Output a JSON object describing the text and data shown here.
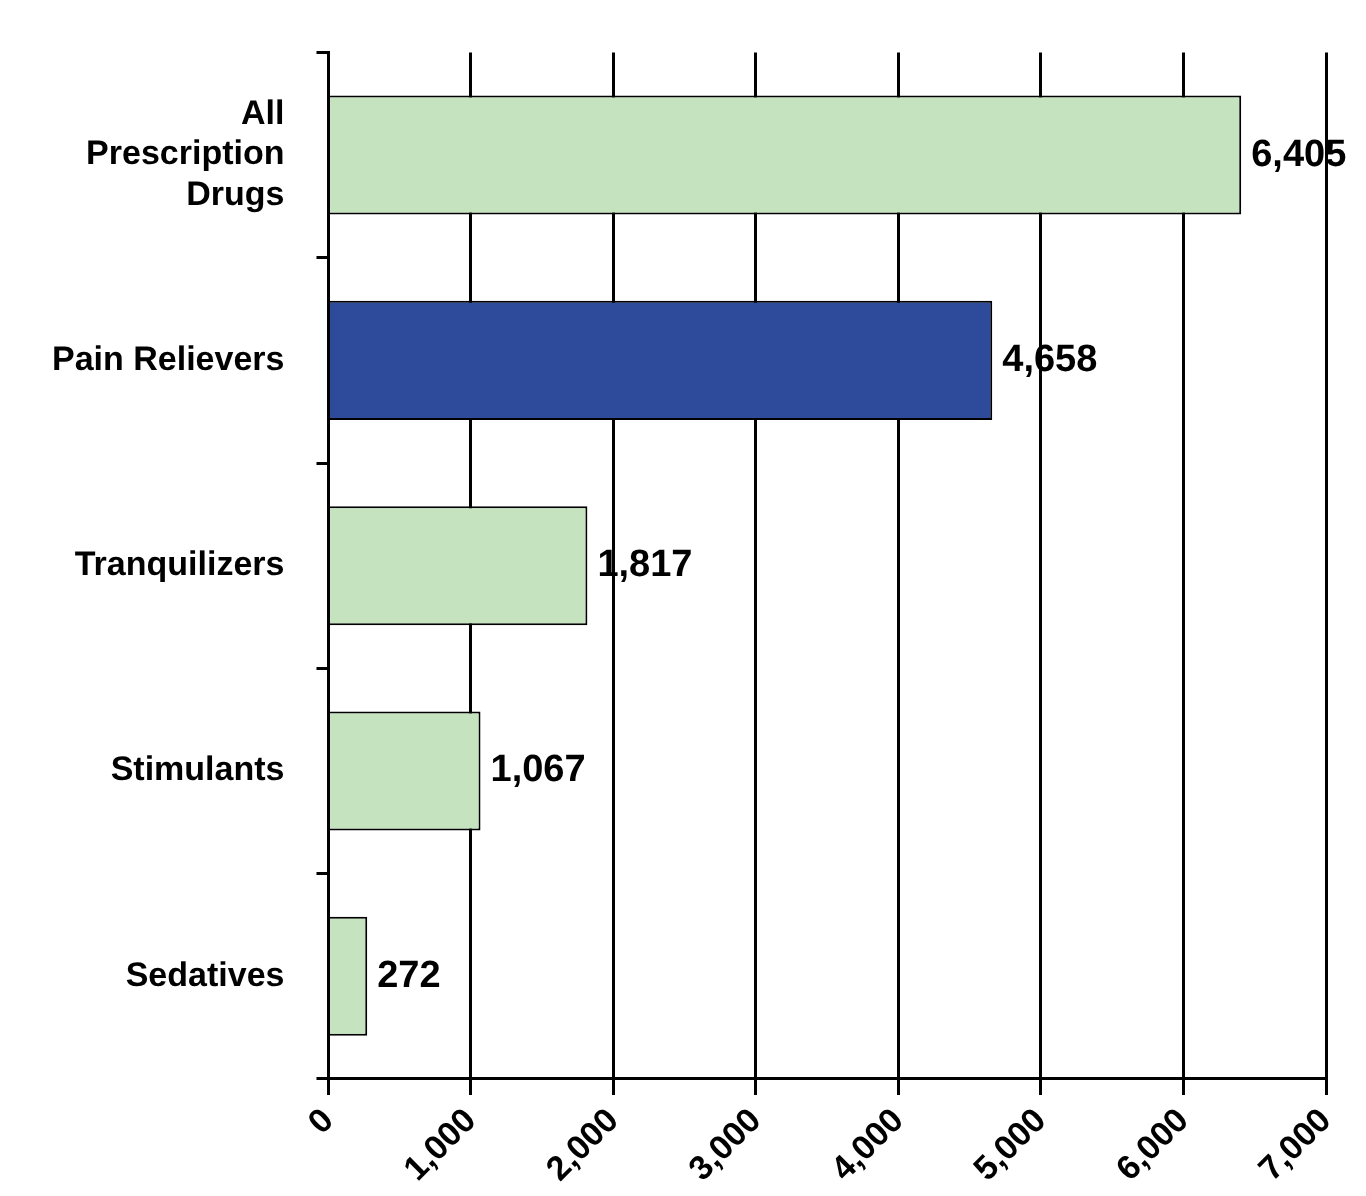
{
  "chart_data": {
    "type": "bar",
    "orientation": "horizontal",
    "categories": [
      "All Prescription Drugs",
      "Pain Relievers",
      "Tranquilizers",
      "Stimulants",
      "Sedatives"
    ],
    "values": [
      6405,
      4658,
      1817,
      1067,
      272
    ],
    "value_labels": [
      "6,405",
      "4,658",
      "1,817",
      "1,067",
      "272"
    ],
    "colors": [
      "#c6e3c0",
      "#2e4a9a",
      "#c6e3c0",
      "#c6e3c0",
      "#c6e3c0"
    ],
    "xlim": [
      0,
      7000
    ],
    "xticks": [
      0,
      {
        "value": 1000,
        "label": "1,000"
      },
      {
        "value": 2000,
        "label": "2,000"
      },
      {
        "value": 3000,
        "label": "3,000"
      },
      {
        "value": 4000,
        "label": "4,000"
      },
      {
        "value": 5000,
        "label": "5,000"
      },
      {
        "value": 6000,
        "label": "6,000"
      },
      {
        "value": 7000,
        "label": "7,000"
      }
    ],
    "grid": "x"
  }
}
